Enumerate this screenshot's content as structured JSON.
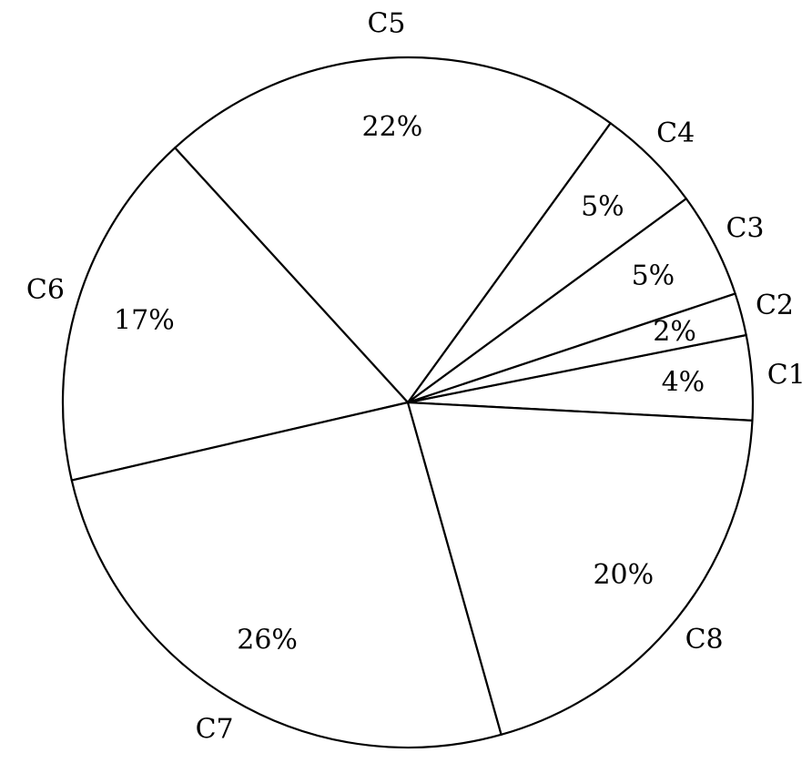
{
  "chart_data": {
    "type": "pie",
    "title": "",
    "categories": [
      "C1",
      "C2",
      "C3",
      "C4",
      "C5",
      "C6",
      "C7",
      "C8"
    ],
    "values": [
      4,
      2,
      5,
      5,
      22,
      17,
      26,
      20
    ],
    "value_labels": [
      "4%",
      "2%",
      "5%",
      "5%",
      "22%",
      "17%",
      "26%",
      "20%"
    ],
    "direction": "counterclockwise",
    "legend": "none",
    "label_position": "outside-slices",
    "colors": {
      "fill": "#ffffff",
      "stroke": "#000000"
    }
  }
}
